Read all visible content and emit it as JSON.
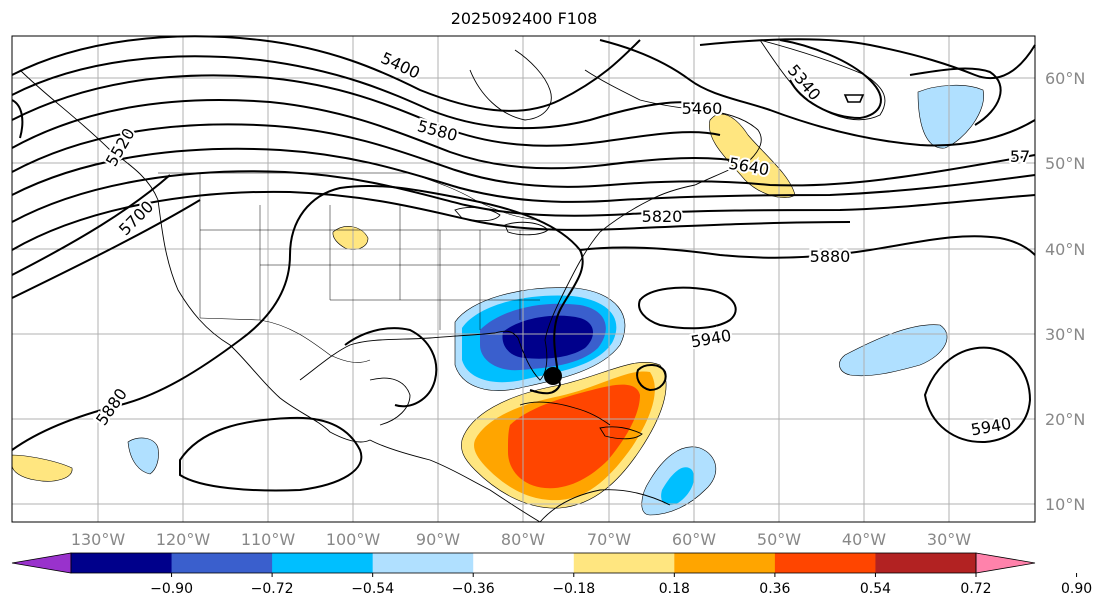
{
  "title": "2025092400 F108",
  "lat_labels": [
    "60°N",
    "50°N",
    "40°N",
    "30°N",
    "20°N",
    "10°N"
  ],
  "lon_labels": [
    "130°W",
    "120°W",
    "110°W",
    "100°W",
    "90°W",
    "80°W",
    "70°W",
    "60°W",
    "50°W",
    "40°W",
    "30°W"
  ],
  "contour_labels": [
    "5400",
    "5340",
    "5460",
    "5580",
    "5520",
    "5640",
    "57",
    "5820",
    "5700",
    "5880",
    "5940",
    "5880",
    "5940"
  ],
  "colorbar": {
    "ticks": [
      "−0.90",
      "−0.72",
      "−0.54",
      "−0.36",
      "−0.18",
      "0.18",
      "0.36",
      "0.54",
      "0.72",
      "0.90"
    ],
    "colors": [
      "#9932cc",
      "#00008b",
      "#3a5fcd",
      "#00bfff",
      "#b0e0ff",
      "#ffffff",
      "#ffe680",
      "#ffa500",
      "#ff4500",
      "#b22222",
      "#ff82ab"
    ]
  },
  "storm_marker": "storm-center"
}
